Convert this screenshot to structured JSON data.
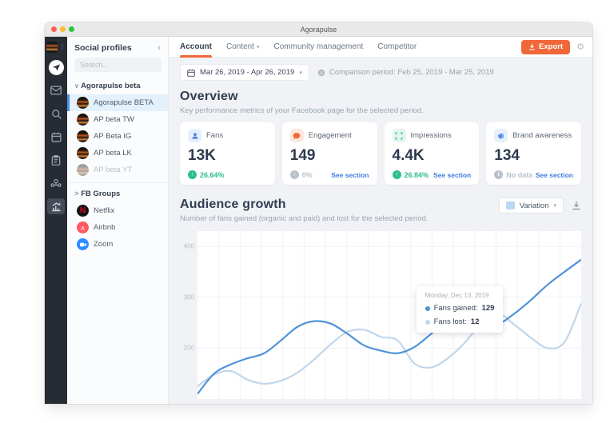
{
  "window": {
    "title": "Agorapulse"
  },
  "colors": {
    "accent": "#f0673a",
    "green": "#2ebd8f",
    "link_blue": "#3f7ce0",
    "selected_blue": "#4a90e2"
  },
  "rail": {
    "icons": [
      "profile-avatar",
      "agorapulse-logo",
      "inbox",
      "listening-search",
      "publishing-calendar",
      "reports-clipboard",
      "fans-people",
      "stats-chart"
    ]
  },
  "sidebar": {
    "header": "Social profiles",
    "collapse_icon": "‹",
    "search_placeholder": "Search...",
    "group_label": "Agorapulse beta",
    "group_chevron": "∨",
    "profiles": [
      {
        "name": "Agorapulse BETA"
      },
      {
        "name": "AP beta TW"
      },
      {
        "name": "AP Beta IG"
      },
      {
        "name": "AP beta LK"
      },
      {
        "name": "AP beta YT"
      }
    ],
    "fb_groups_label": "FB Groups",
    "fb_groups_chevron": ">",
    "others": [
      {
        "name": "Netflix"
      },
      {
        "name": "Airbnb"
      },
      {
        "name": "Zoom"
      }
    ]
  },
  "nav": {
    "tabs": [
      {
        "label": "Account"
      },
      {
        "label": "Content"
      },
      {
        "label": "Community management"
      },
      {
        "label": "Competitor"
      }
    ],
    "export_label": "Export"
  },
  "filters": {
    "date_range": "Mar 26, 2019 - Apr 26, 2019",
    "comparison": "Comparison period: Feb 25, 2019 - Mar 25, 2019"
  },
  "overview": {
    "title": "Overview",
    "subtitle": "Key performance metrics of your Facebook page for the selected period.",
    "cards": [
      {
        "label": "Fans",
        "value": "13K",
        "change": "26.64%",
        "trend_glyph": "↑"
      },
      {
        "label": "Engagement",
        "value": "149",
        "change": "0%",
        "trend_glyph": "↑",
        "link": "See section"
      },
      {
        "label": "Impressions",
        "value": "4.4K",
        "change": "26.84%",
        "trend_glyph": "↑",
        "link": "See section"
      },
      {
        "label": "Brand awareness",
        "value": "134",
        "change": "No data",
        "trend_glyph": "i",
        "link": "See section"
      }
    ]
  },
  "audience": {
    "title": "Audience growth",
    "subtitle": "Number of fans gained (organic and paid) and lost for the selected period.",
    "variation_label": "Variation",
    "variation_chevron": "▾",
    "tooltip": {
      "date": "Monday, Dec 13, 2019",
      "rows": [
        {
          "label": "Fans gained:",
          "value": "129"
        },
        {
          "label": "Fans lost:",
          "value": "12"
        }
      ]
    }
  },
  "chart_data": {
    "type": "line",
    "title": "Audience growth",
    "xlabel": "",
    "ylabel": "Fans",
    "x_range": [
      "Mar 26, 2019",
      "Apr 26, 2019"
    ],
    "x": [
      0,
      1,
      2,
      3,
      4,
      5,
      6,
      7,
      8,
      9,
      10,
      11,
      12,
      13,
      14,
      15,
      16,
      17,
      18,
      19,
      20,
      21,
      22,
      23
    ],
    "series": [
      {
        "name": "Fans gained",
        "color": "#4f93d8",
        "values": [
          110,
          150,
          168,
          180,
          190,
          215,
          242,
          253,
          248,
          228,
          205,
          195,
          190,
          202,
          228,
          255,
          270,
          256,
          248,
          268,
          295,
          325,
          350,
          374
        ]
      },
      {
        "name": "Fans lost",
        "color": "#c1d6eb",
        "values": [
          125,
          148,
          155,
          138,
          130,
          136,
          152,
          178,
          208,
          232,
          236,
          222,
          215,
          170,
          162,
          180,
          210,
          248,
          268,
          246,
          220,
          200,
          212,
          288
        ]
      }
    ],
    "ylim": [
      100,
      430
    ],
    "yticks": [
      200,
      300,
      400
    ],
    "grid": true,
    "legend_position": "none",
    "highlighted_point": {
      "date": "Monday, Dec 13, 2019",
      "fans_gained": 129,
      "fans_lost": 12
    }
  }
}
